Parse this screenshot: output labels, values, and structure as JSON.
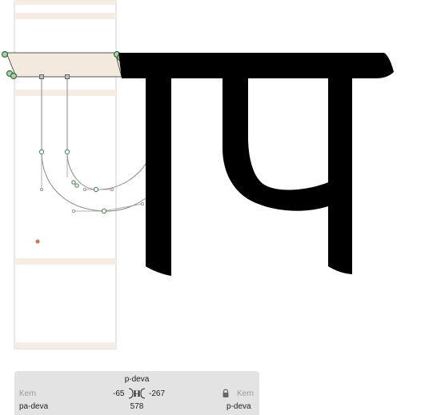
{
  "editor": {
    "glyph_display_char": "ा",
    "glyph_shape_name": "p-deva",
    "colors": {
      "glyph_fill": "#000000",
      "metrics_band": "#f5ece4",
      "metrics_band_dark": "#efe2d5",
      "layer_outline": "#c8c8c8",
      "path_stroke": "#8a8a8a",
      "node": "#8fb98f",
      "node_dark": "#3e6b3e",
      "anchor": "#c87a5a"
    }
  },
  "info_panel": {
    "glyph_name": "p-deva",
    "left_kern_label": "Kern",
    "left_kern_value": "-65",
    "right_kern_value": "-267",
    "right_kern_label": "Kern",
    "left_glyph": "pa-deva",
    "width_value": "578",
    "right_glyph": "p-deva"
  }
}
